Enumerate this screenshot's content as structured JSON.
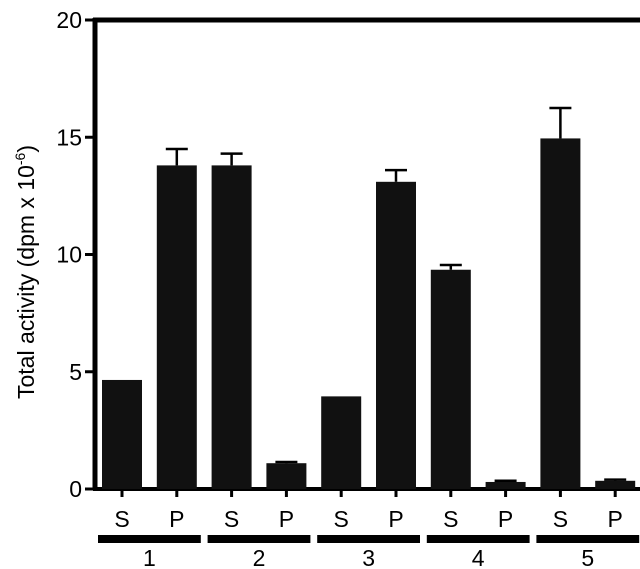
{
  "chart_data": {
    "type": "bar",
    "ylabel": "Total activity (dpm x 10",
    "ylabel_sup": "-6",
    "ylabel_close": ")",
    "ylim": [
      0,
      20
    ],
    "yticks": [
      0,
      5,
      10,
      15,
      20
    ],
    "grid": false,
    "bar_color": "#111111",
    "categories": [
      "S",
      "P",
      "S",
      "P",
      "S",
      "P",
      "S",
      "P",
      "S",
      "P"
    ],
    "values": [
      4.65,
      13.8,
      13.8,
      1.1,
      3.95,
      13.1,
      9.35,
      0.3,
      14.95,
      0.35
    ],
    "errors": [
      0,
      0.7,
      0.5,
      0.05,
      0,
      0.5,
      0.2,
      0.05,
      1.3,
      0.05
    ],
    "groups": [
      {
        "label": "1",
        "members": [
          0,
          1
        ]
      },
      {
        "label": "2",
        "members": [
          2,
          3
        ]
      },
      {
        "label": "3",
        "members": [
          4,
          5
        ]
      },
      {
        "label": "4",
        "members": [
          6,
          7
        ]
      },
      {
        "label": "5",
        "members": [
          8,
          9
        ]
      }
    ]
  }
}
